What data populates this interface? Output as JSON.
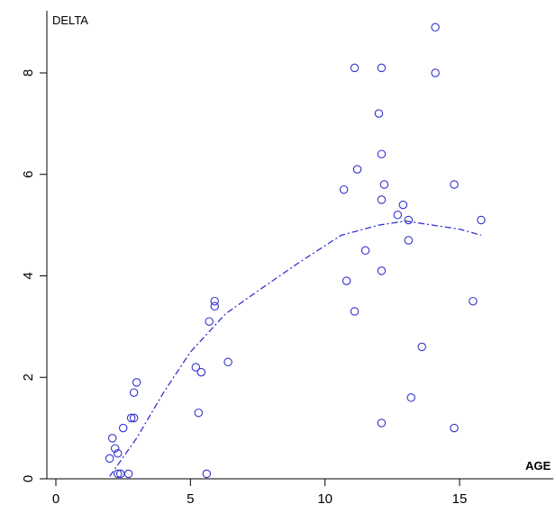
{
  "chart_data": {
    "type": "scatter",
    "title": "",
    "xlabel": "AGE",
    "ylabel": "DELTA",
    "xlim": [
      0,
      17.5
    ],
    "ylim": [
      0,
      9.3
    ],
    "x_ticks": [
      "0",
      "5",
      "10",
      "15"
    ],
    "y_ticks": [
      "0",
      "2",
      "4",
      "6",
      "8"
    ],
    "grid": false,
    "legend": "none",
    "colors": {
      "points": "#3333cc",
      "smooth": "#3333cc",
      "axis": "#000000"
    },
    "points": [
      {
        "x": 2.0,
        "y": 0.4
      },
      {
        "x": 2.1,
        "y": 0.8
      },
      {
        "x": 2.2,
        "y": 0.6
      },
      {
        "x": 2.3,
        "y": 0.5
      },
      {
        "x": 2.3,
        "y": 0.1
      },
      {
        "x": 2.4,
        "y": 0.1
      },
      {
        "x": 2.5,
        "y": 1.0
      },
      {
        "x": 2.7,
        "y": 0.1
      },
      {
        "x": 2.8,
        "y": 1.2
      },
      {
        "x": 2.9,
        "y": 1.2
      },
      {
        "x": 2.9,
        "y": 1.7
      },
      {
        "x": 3.0,
        "y": 1.9
      },
      {
        "x": 5.2,
        "y": 2.2
      },
      {
        "x": 5.3,
        "y": 1.3
      },
      {
        "x": 5.4,
        "y": 2.1
      },
      {
        "x": 5.6,
        "y": 0.1
      },
      {
        "x": 5.7,
        "y": 3.1
      },
      {
        "x": 5.9,
        "y": 3.4
      },
      {
        "x": 5.9,
        "y": 3.5
      },
      {
        "x": 6.4,
        "y": 2.3
      },
      {
        "x": 10.7,
        "y": 5.7
      },
      {
        "x": 10.8,
        "y": 3.9
      },
      {
        "x": 11.1,
        "y": 8.1
      },
      {
        "x": 11.1,
        "y": 3.3
      },
      {
        "x": 11.2,
        "y": 6.1
      },
      {
        "x": 11.5,
        "y": 4.5
      },
      {
        "x": 12.0,
        "y": 7.2
      },
      {
        "x": 12.1,
        "y": 8.1
      },
      {
        "x": 12.1,
        "y": 6.4
      },
      {
        "x": 12.1,
        "y": 5.5
      },
      {
        "x": 12.1,
        "y": 4.1
      },
      {
        "x": 12.1,
        "y": 1.1
      },
      {
        "x": 12.2,
        "y": 5.8
      },
      {
        "x": 12.7,
        "y": 5.2
      },
      {
        "x": 12.9,
        "y": 5.4
      },
      {
        "x": 13.1,
        "y": 5.1
      },
      {
        "x": 13.1,
        "y": 4.7
      },
      {
        "x": 13.2,
        "y": 1.6
      },
      {
        "x": 13.6,
        "y": 2.6
      },
      {
        "x": 14.1,
        "y": 8.9
      },
      {
        "x": 14.1,
        "y": 8.0
      },
      {
        "x": 14.8,
        "y": 5.8
      },
      {
        "x": 14.8,
        "y": 1.0
      },
      {
        "x": 15.5,
        "y": 3.5
      },
      {
        "x": 15.8,
        "y": 5.1
      }
    ],
    "smooth_line": [
      {
        "x": 2.0,
        "y": 0.05
      },
      {
        "x": 3.0,
        "y": 0.8
      },
      {
        "x": 4.0,
        "y": 1.7
      },
      {
        "x": 5.0,
        "y": 2.5
      },
      {
        "x": 6.3,
        "y": 3.25
      },
      {
        "x": 7.5,
        "y": 3.7
      },
      {
        "x": 9.0,
        "y": 4.25
      },
      {
        "x": 10.6,
        "y": 4.8
      },
      {
        "x": 12.0,
        "y": 5.0
      },
      {
        "x": 13.0,
        "y": 5.08
      },
      {
        "x": 14.0,
        "y": 5.0
      },
      {
        "x": 15.0,
        "y": 4.92
      },
      {
        "x": 15.8,
        "y": 4.8
      }
    ]
  }
}
